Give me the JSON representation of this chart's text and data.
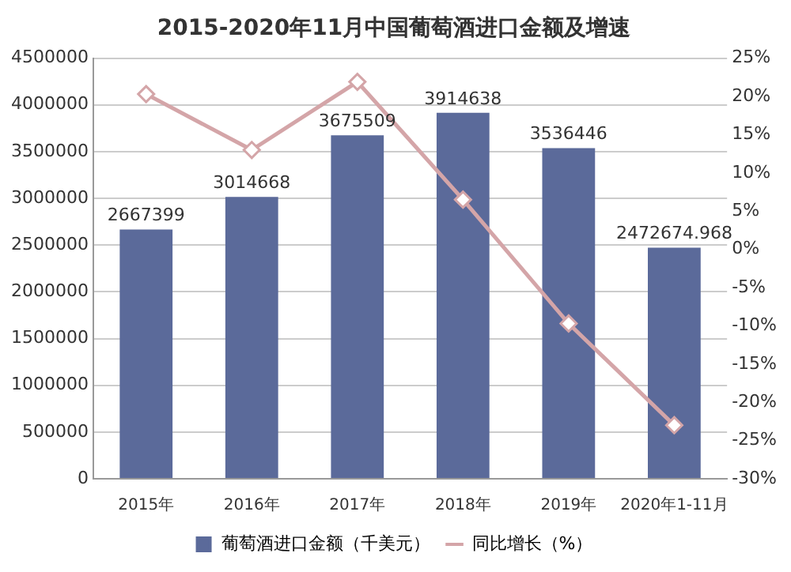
{
  "chart_data": {
    "type": "bar",
    "title": "2015-2020年11月中国葡萄酒进口金额及增速",
    "categories": [
      "2015年",
      "2016年",
      "2017年",
      "2018年",
      "2019年",
      "2020年1-11月"
    ],
    "series": [
      {
        "name": "葡萄酒进口金额（千美元）",
        "color": "#5b6a9a",
        "values": [
          2667399,
          3014668,
          3675509,
          3914638,
          3536446,
          2472674.968
        ],
        "data_labels": true
      },
      {
        "name": "同比增长（%）",
        "type": "line",
        "axis": "y2",
        "color": "#d4a5a8",
        "values": [
          20.3,
          13.0,
          21.9,
          6.5,
          -9.7,
          -23.0
        ],
        "marker": "diamond"
      }
    ],
    "ylim": [
      0,
      4500000
    ],
    "yticks": [
      0,
      500000,
      1000000,
      1500000,
      2000000,
      2500000,
      3000000,
      3500000,
      4000000,
      4500000
    ],
    "y2lim": [
      -30,
      25
    ],
    "y2ticks": [
      {
        "value": -30,
        "label": "-30%"
      },
      {
        "value": -25,
        "label": "-25%"
      },
      {
        "value": -20,
        "label": "-20%"
      },
      {
        "value": -15,
        "label": "-15%"
      },
      {
        "value": -10,
        "label": "-10%"
      },
      {
        "value": -5,
        "label": "-5%"
      },
      {
        "value": 0,
        "label": "0%"
      },
      {
        "value": 5,
        "label": "5%"
      },
      {
        "value": 10,
        "label": "10%"
      },
      {
        "value": 15,
        "label": "15%"
      },
      {
        "value": 20,
        "label": "20%"
      },
      {
        "value": 25,
        "label": "25%"
      }
    ],
    "grid": "y",
    "legend": "bottom"
  }
}
